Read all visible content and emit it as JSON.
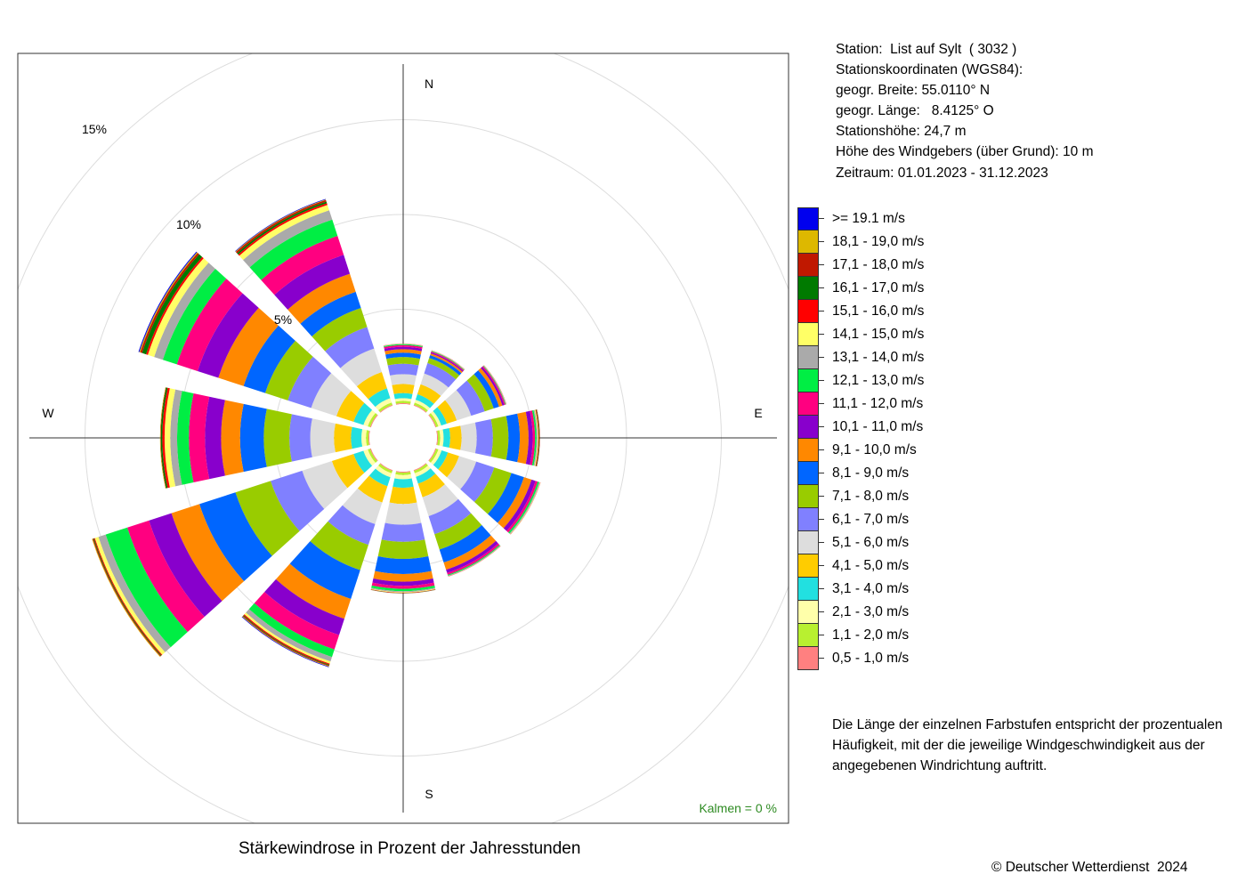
{
  "station": {
    "lines": [
      "Station:  List auf Sylt  ( 3032 )",
      "Stationskoordinaten (WGS84):",
      "geogr. Breite: 55.0110° N",
      "geogr. Länge:   8.4125° O",
      "Stationshöhe: 24,7 m",
      "Höhe des Windgebers (über Grund): 10 m",
      "Zeitraum: 01.01.2023 - 31.12.2023"
    ]
  },
  "legend": {
    "items": [
      {
        "label": ">= 19.1 m/s",
        "color": "#0000EE"
      },
      {
        "label": "18,1 - 19,0 m/s",
        "color": "#DDB800"
      },
      {
        "label": "17,1 - 18,0 m/s",
        "color": "#C01800"
      },
      {
        "label": "16,1 - 17,0 m/s",
        "color": "#007A00"
      },
      {
        "label": "15,1 - 16,0 m/s",
        "color": "#FF0000"
      },
      {
        "label": "14,1 - 15,0 m/s",
        "color": "#FFFF66"
      },
      {
        "label": "13,1 - 14,0 m/s",
        "color": "#AAAAAA"
      },
      {
        "label": "12,1 - 13,0 m/s",
        "color": "#00EE44"
      },
      {
        "label": "11,1 - 12,0 m/s",
        "color": "#FF0080"
      },
      {
        "label": "10,1 - 11,0 m/s",
        "color": "#8800CC"
      },
      {
        "label": "9,1 - 10,0 m/s",
        "color": "#FF8800"
      },
      {
        "label": "8,1 - 9,0 m/s",
        "color": "#0066FF"
      },
      {
        "label": "7,1 - 8,0 m/s",
        "color": "#99CC00"
      },
      {
        "label": "6,1 - 7,0 m/s",
        "color": "#8080FF"
      },
      {
        "label": "5,1 - 6,0 m/s",
        "color": "#DDDDDD"
      },
      {
        "label": "4,1 - 5,0 m/s",
        "color": "#FFCC00"
      },
      {
        "label": "3,1 - 4,0 m/s",
        "color": "#22E0E0"
      },
      {
        "label": "2,1 - 3,0 m/s",
        "color": "#FFFFAA"
      },
      {
        "label": "1,1 - 2,0 m/s",
        "color": "#B8F030"
      },
      {
        "label": "0,5 - 1,0 m/s",
        "color": "#FF8080"
      }
    ]
  },
  "note": "Die Länge der einzelnen Farbstufen entspricht der prozentualen Häufigkeit, mit der die jeweilige Windgeschwindigkeit aus der angegebenen Windrichtung auftritt.",
  "caption": "Stärkewindrose in Prozent der Jahresstunden",
  "copyright": "© Deutscher Wetterdienst  2024",
  "kalmen": "Kalmen  =  0 %",
  "compass": {
    "n": "N",
    "e": "E",
    "s": "S",
    "w": "W"
  },
  "ring_labels": [
    "5%",
    "10%",
    "15%"
  ],
  "chart_data": {
    "type": "wind-rose",
    "title": "Stärkewindrose in Prozent der Jahresstunden",
    "unit": "%",
    "ring_values": [
      5,
      10,
      15
    ],
    "sector_width_deg": 30,
    "directions_deg": [
      0,
      30,
      60,
      90,
      120,
      150,
      180,
      210,
      240,
      270,
      300,
      330
    ],
    "speed_classes": [
      "0,5 - 1,0 m/s",
      "1,1 - 2,0 m/s",
      "2,1 - 3,0 m/s",
      "3,1 - 4,0 m/s",
      "4,1 - 5,0 m/s",
      "5,1 - 6,0 m/s",
      "6,1 - 7,0 m/s",
      "7,1 - 8,0 m/s",
      "8,1 - 9,0 m/s",
      "9,1 - 10,0 m/s",
      "10,1 - 11,0 m/s",
      "11,1 - 12,0 m/s",
      "12,1 - 13,0 m/s",
      "13,1 - 14,0 m/s",
      "14,1 - 15,0 m/s",
      "15,1 - 16,0 m/s",
      "16,1 - 17,0 m/s",
      "17,1 - 18,0 m/s",
      "18,1 - 19,0 m/s",
      ">= 19.1 m/s"
    ],
    "colors": [
      "#FF8080",
      "#B8F030",
      "#FFFFAA",
      "#22E0E0",
      "#FFCC00",
      "#DDDDDD",
      "#8080FF",
      "#99CC00",
      "#0066FF",
      "#FF8800",
      "#8800CC",
      "#FF0080",
      "#00EE44",
      "#AAAAAA",
      "#FFFF66",
      "#FF0000",
      "#007A00",
      "#C01800",
      "#DDB800",
      "#0000EE"
    ],
    "sectors": [
      {
        "dir": 0,
        "values": [
          0.05,
          0.12,
          0.14,
          0.27,
          0.48,
          0.52,
          0.55,
          0.35,
          0.23,
          0.18,
          0.13,
          0.09,
          0.05,
          0.02,
          0.01,
          0.01,
          0.0,
          0.0,
          0.0,
          0.0
        ]
      },
      {
        "dir": 30,
        "values": [
          0.05,
          0.12,
          0.16,
          0.31,
          0.55,
          0.6,
          0.58,
          0.28,
          0.16,
          0.09,
          0.06,
          0.05,
          0.03,
          0.02,
          0.01,
          0.01,
          0.0,
          0.0,
          0.0,
          0.0
        ]
      },
      {
        "dir": 60,
        "values": [
          0.05,
          0.12,
          0.16,
          0.31,
          0.55,
          0.8,
          0.75,
          0.5,
          0.3,
          0.18,
          0.1,
          0.06,
          0.03,
          0.02,
          0.01,
          0.01,
          0.0,
          0.0,
          0.0,
          0.0
        ]
      },
      {
        "dir": 90,
        "values": [
          0.05,
          0.12,
          0.18,
          0.35,
          0.6,
          0.8,
          0.85,
          0.82,
          0.6,
          0.46,
          0.22,
          0.12,
          0.08,
          0.06,
          0.04,
          0.03,
          0.03,
          0.02,
          0.0,
          0.0
        ]
      },
      {
        "dir": 120,
        "values": [
          0.05,
          0.12,
          0.18,
          0.35,
          0.62,
          0.95,
          1.0,
          0.95,
          0.7,
          0.42,
          0.22,
          0.12,
          0.08,
          0.05,
          0.02,
          0.01,
          0.0,
          0.0,
          0.0,
          0.0
        ]
      },
      {
        "dir": 150,
        "values": [
          0.05,
          0.13,
          0.2,
          0.38,
          0.75,
          1.05,
          1.0,
          0.85,
          0.72,
          0.4,
          0.18,
          0.1,
          0.05,
          0.03,
          0.01,
          0.01,
          0.0,
          0.0,
          0.0,
          0.0
        ]
      },
      {
        "dir": 180,
        "values": [
          0.05,
          0.13,
          0.22,
          0.45,
          0.85,
          1.1,
          0.9,
          0.9,
          0.8,
          0.4,
          0.22,
          0.16,
          0.12,
          0.05,
          0.03,
          0.02,
          0.01,
          0.01,
          0.0,
          0.0
        ]
      },
      {
        "dir": 210,
        "values": [
          0.05,
          0.13,
          0.22,
          0.5,
          0.9,
          1.2,
          1.15,
          1.4,
          1.6,
          1.1,
          0.9,
          0.8,
          0.42,
          0.25,
          0.12,
          0.06,
          0.04,
          0.04,
          0.03,
          0.03
        ]
      },
      {
        "dir": 240,
        "values": [
          0.05,
          0.13,
          0.24,
          0.55,
          1.2,
          1.65,
          1.75,
          1.95,
          2.0,
          1.55,
          1.25,
          1.2,
          1.2,
          0.4,
          0.2,
          0.05,
          0.04,
          0.04,
          0.03,
          0.0
        ]
      },
      {
        "dir": 270,
        "values": [
          0.05,
          0.13,
          0.24,
          0.55,
          0.9,
          1.25,
          1.1,
          1.35,
          1.25,
          1.0,
          0.85,
          0.85,
          0.62,
          0.36,
          0.3,
          0.12,
          0.08,
          0.02,
          0.02,
          0.0
        ]
      },
      {
        "dir": 300,
        "values": [
          0.05,
          0.13,
          0.24,
          0.55,
          0.95,
          1.4,
          1.3,
          1.25,
          1.2,
          1.4,
          1.15,
          1.15,
          0.78,
          0.48,
          0.35,
          0.1,
          0.22,
          0.1,
          0.05,
          0.05
        ]
      },
      {
        "dir": 330,
        "values": [
          0.05,
          0.13,
          0.24,
          0.55,
          0.9,
          1.3,
          1.2,
          1.05,
          0.9,
          1.0,
          1.05,
          1.05,
          0.9,
          0.52,
          0.3,
          0.09,
          0.09,
          0.09,
          0.03,
          0.03
        ]
      }
    ]
  }
}
